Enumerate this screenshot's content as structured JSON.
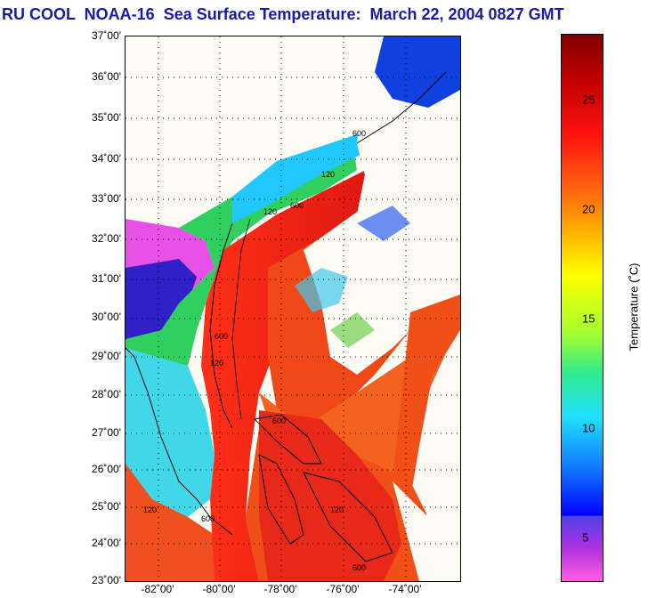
{
  "title": "RU COOL  NOAA-16  Sea Surface Temperature:  March 22, 2004 0827 GMT",
  "map": {
    "lat_ticks": [
      "37˚00'",
      "36˚00'",
      "35˚00'",
      "34˚00'",
      "33˚00'",
      "32˚00'",
      "31˚00'",
      "30˚00'",
      "29˚00'",
      "28˚00'",
      "27˚00'",
      "26˚00'",
      "25˚00'",
      "24˚00'",
      "23˚00'"
    ],
    "lon_ticks": [
      "-82˚00'",
      "-80˚00'",
      "-78˚00'",
      "-76˚00'",
      "-74˚00'"
    ],
    "isobath_labels": [
      "600",
      "120",
      "600",
      "120",
      "600",
      "120",
      "600",
      "120",
      "600",
      "120",
      "600"
    ],
    "colors": {
      "land_cold": "#1aa0ff",
      "shelf": "#38d8c0",
      "gulf_stream": "#e8281a",
      "offshore": "#f45a14",
      "clouds": "#fcfcf4",
      "grid": "#000000"
    }
  },
  "colorbar": {
    "ticks": [
      "25",
      "20",
      "15",
      "10",
      "5"
    ],
    "label": "Temperature (˚C)"
  }
}
